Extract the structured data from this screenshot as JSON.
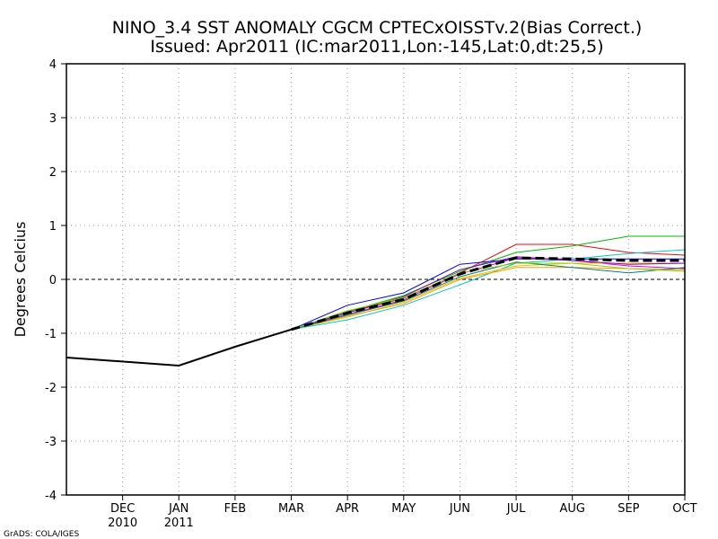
{
  "chart_data": {
    "type": "line",
    "title_line1": "NINO_3.4  SST  ANOMALY  CGCM  CPTECxOISSTv.2(Bias  Correct.)",
    "title_line2": "Issued:   Apr2011  (IC:mar2011,Lon:-145,Lat:0,dt:25,5)",
    "ylabel": "Degrees  Celcius",
    "credit": "GrADS: COLA/IGES",
    "ylim": [
      -4,
      4
    ],
    "yticks": [
      "-4",
      "-3",
      "-2",
      "-1",
      "0",
      "1",
      "2",
      "3",
      "4"
    ],
    "xlim": [
      0,
      11
    ],
    "x_ticks": [
      {
        "x": 1,
        "label": "DEC",
        "sub": "2010"
      },
      {
        "x": 2,
        "label": "JAN",
        "sub": "2011"
      },
      {
        "x": 3,
        "label": "FEB",
        "sub": ""
      },
      {
        "x": 4,
        "label": "MAR",
        "sub": ""
      },
      {
        "x": 5,
        "label": "APR",
        "sub": ""
      },
      {
        "x": 6,
        "label": "MAY",
        "sub": ""
      },
      {
        "x": 7,
        "label": "JUN",
        "sub": ""
      },
      {
        "x": 8,
        "label": "JUL",
        "sub": ""
      },
      {
        "x": 9,
        "label": "AUG",
        "sub": ""
      },
      {
        "x": 10,
        "label": "SEP",
        "sub": ""
      },
      {
        "x": 11,
        "label": "OCT",
        "sub": ""
      }
    ],
    "observed": {
      "name": "observed",
      "color": "#000000",
      "x": [
        0,
        2,
        3,
        4
      ],
      "values": [
        -1.45,
        -1.6,
        -1.25,
        -0.93
      ]
    },
    "ensemble": [
      {
        "name": "member-red",
        "color": "#ff0000",
        "values": [
          -0.93,
          -0.62,
          -0.35,
          0.12,
          0.65,
          0.65,
          0.5,
          0.45
        ]
      },
      {
        "name": "member-green",
        "color": "#00bb00",
        "values": [
          -0.93,
          -0.6,
          -0.3,
          0.15,
          0.5,
          0.62,
          0.8,
          0.8
        ]
      },
      {
        "name": "member-blue",
        "color": "#0000ff",
        "values": [
          -0.93,
          -0.48,
          -0.25,
          0.28,
          0.38,
          0.38,
          0.38,
          0.38
        ]
      },
      {
        "name": "member-cyan",
        "color": "#00c8c8",
        "values": [
          -0.93,
          -0.75,
          -0.48,
          -0.1,
          0.3,
          0.38,
          0.48,
          0.55
        ]
      },
      {
        "name": "member-magenta",
        "color": "#e000e0",
        "values": [
          -0.93,
          -0.65,
          -0.38,
          0.1,
          0.4,
          0.35,
          0.25,
          0.2
        ]
      },
      {
        "name": "member-yellow",
        "color": "#e6c800",
        "values": [
          -0.93,
          -0.7,
          -0.42,
          0.02,
          0.25,
          0.3,
          0.3,
          0.3
        ]
      },
      {
        "name": "member-orange",
        "color": "#ff9900",
        "values": [
          -0.93,
          -0.68,
          -0.45,
          0.0,
          0.22,
          0.22,
          0.2,
          0.18
        ]
      },
      {
        "name": "member-purple",
        "color": "#8000c0",
        "values": [
          -0.93,
          -0.62,
          -0.32,
          0.18,
          0.42,
          0.35,
          0.28,
          0.3
        ]
      },
      {
        "name": "member-teal",
        "color": "#008080",
        "values": [
          -0.93,
          -0.66,
          -0.4,
          0.05,
          0.32,
          0.22,
          0.12,
          0.22
        ]
      },
      {
        "name": "member-lime",
        "color": "#90d000",
        "values": [
          -0.93,
          -0.58,
          -0.34,
          0.12,
          0.3,
          0.3,
          0.2,
          0.15
        ]
      }
    ],
    "ensemble_x": [
      4,
      5,
      6,
      7,
      8,
      9,
      10,
      11
    ],
    "ensemble_mean": {
      "name": "ensemble-mean",
      "color": "#000000",
      "values": [
        -0.93,
        -0.62,
        -0.37,
        0.1,
        0.4,
        0.38,
        0.35,
        0.35
      ]
    }
  }
}
